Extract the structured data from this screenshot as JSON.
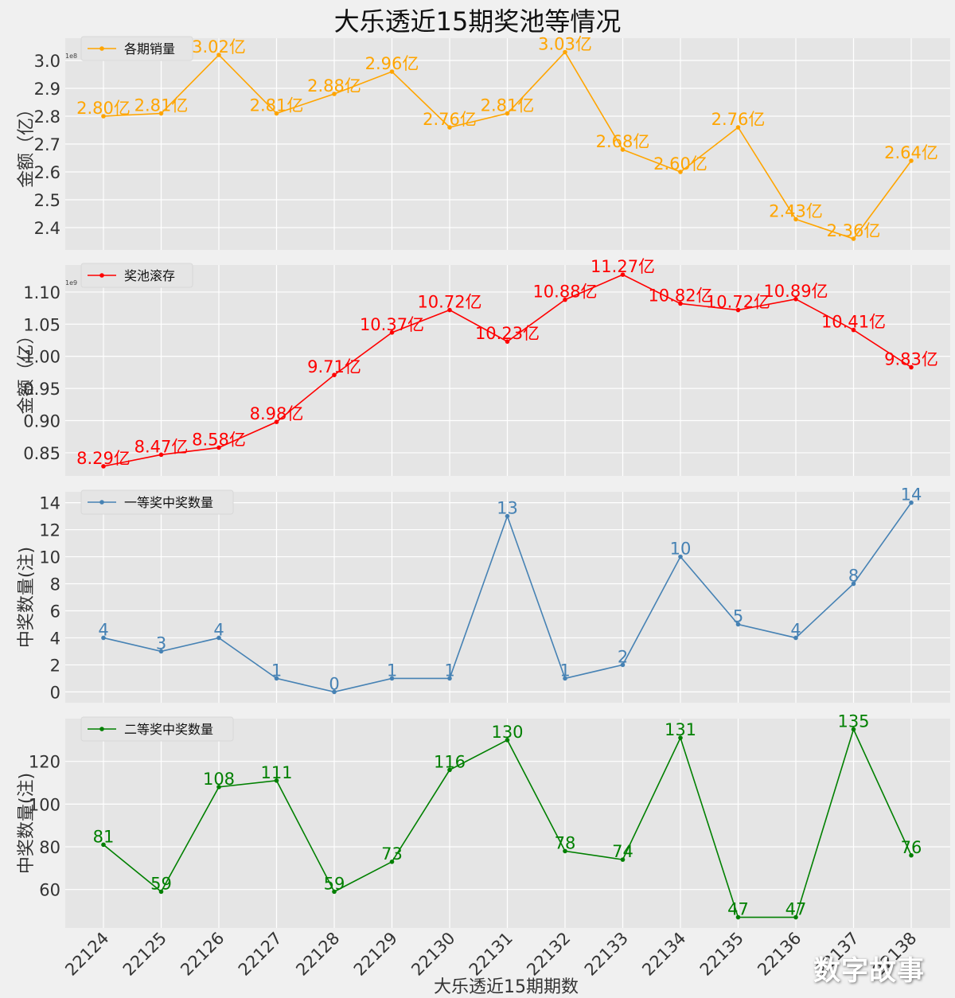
{
  "title": "大乐透近15期奖池等情况",
  "xlabel": "大乐透近15期期数",
  "watermark": "数字故事",
  "chart_data": [
    {
      "type": "line",
      "title": "",
      "ylabel": "金额（亿）",
      "scale_note": "1e8",
      "legend": "各期销量",
      "legend_position": "top-left",
      "color": "#ffa500",
      "categories": [
        "22124",
        "22125",
        "22126",
        "22127",
        "22128",
        "22129",
        "22130",
        "22131",
        "22132",
        "22133",
        "22134",
        "22135",
        "22136",
        "22137",
        "22138"
      ],
      "values": [
        280000000,
        281000000,
        302000000,
        281000000,
        288000000,
        296000000,
        276000000,
        281000000,
        303000000,
        268000000,
        260000000,
        276000000,
        243000000,
        236000000,
        264000000
      ],
      "data_labels": [
        "2.80亿",
        "2.81亿",
        "3.02亿",
        "2.81亿",
        "2.88亿",
        "2.96亿",
        "2.76亿",
        "2.81亿",
        "3.03亿",
        "2.68亿",
        "2.60亿",
        "2.76亿",
        "2.43亿",
        "2.36亿",
        "2.64亿"
      ],
      "yticks": [
        "2.4",
        "2.5",
        "2.6",
        "2.7",
        "2.8",
        "2.9",
        "3.0"
      ],
      "ytick_values": [
        240000000,
        250000000,
        260000000,
        270000000,
        280000000,
        290000000,
        300000000
      ],
      "ylim": [
        232000000,
        308000000
      ],
      "grid": true
    },
    {
      "type": "line",
      "title": "",
      "ylabel": "金额（亿）",
      "scale_note": "1e9",
      "legend": "奖池滚存",
      "legend_position": "top-left",
      "color": "#ff0000",
      "categories": [
        "22124",
        "22125",
        "22126",
        "22127",
        "22128",
        "22129",
        "22130",
        "22131",
        "22132",
        "22133",
        "22134",
        "22135",
        "22136",
        "22137",
        "22138"
      ],
      "values": [
        829000000,
        847000000,
        858000000,
        898000000,
        971000000,
        1037000000,
        1072000000,
        1023000000,
        1088000000,
        1127000000,
        1082000000,
        1072000000,
        1089000000,
        1041000000,
        983000000
      ],
      "data_labels": [
        "8.29亿",
        "8.47亿",
        "8.58亿",
        "8.98亿",
        "9.71亿",
        "10.37亿",
        "10.72亿",
        "10.23亿",
        "10.88亿",
        "11.27亿",
        "10.82亿",
        "10.72亿",
        "10.89亿",
        "10.41亿",
        "9.83亿"
      ],
      "yticks": [
        "0.85",
        "0.90",
        "0.95",
        "1.00",
        "1.05",
        "1.10"
      ],
      "ytick_values": [
        850000000,
        900000000,
        950000000,
        1000000000,
        1050000000,
        1100000000
      ],
      "ylim": [
        814000000,
        1142000000
      ],
      "grid": true
    },
    {
      "type": "line",
      "title": "",
      "ylabel": "中奖数量(注)",
      "scale_note": "",
      "legend": "一等奖中奖数量",
      "legend_position": "top-left",
      "color": "#4682b4",
      "categories": [
        "22124",
        "22125",
        "22126",
        "22127",
        "22128",
        "22129",
        "22130",
        "22131",
        "22132",
        "22133",
        "22134",
        "22135",
        "22136",
        "22137",
        "22138"
      ],
      "values": [
        4,
        3,
        4,
        1,
        0,
        1,
        1,
        13,
        1,
        2,
        10,
        5,
        4,
        8,
        14
      ],
      "data_labels": [
        "4",
        "3",
        "4",
        "1",
        "0",
        "1",
        "1",
        "13",
        "1",
        "2",
        "10",
        "5",
        "4",
        "8",
        "14"
      ],
      "yticks": [
        "0",
        "2",
        "4",
        "6",
        "8",
        "10",
        "12",
        "14"
      ],
      "ytick_values": [
        0,
        2,
        4,
        6,
        8,
        10,
        12,
        14
      ],
      "ylim": [
        -0.8,
        14.8
      ],
      "grid": true
    },
    {
      "type": "line",
      "title": "",
      "ylabel": "中奖数量(注)",
      "scale_note": "",
      "legend": "二等奖中奖数量",
      "legend_position": "top-left",
      "color": "#008000",
      "categories": [
        "22124",
        "22125",
        "22126",
        "22127",
        "22128",
        "22129",
        "22130",
        "22131",
        "22132",
        "22133",
        "22134",
        "22135",
        "22136",
        "22137",
        "22138"
      ],
      "values": [
        81,
        59,
        108,
        111,
        59,
        73,
        116,
        130,
        78,
        74,
        131,
        47,
        47,
        135,
        76
      ],
      "data_labels": [
        "81",
        "59",
        "108",
        "111",
        "59",
        "73",
        "116",
        "130",
        "78",
        "74",
        "131",
        "47",
        "47",
        "135",
        "76"
      ],
      "yticks": [
        "60",
        "80",
        "100",
        "120"
      ],
      "ytick_values": [
        60,
        80,
        100,
        120
      ],
      "ylim": [
        42,
        140
      ],
      "grid": true
    }
  ]
}
